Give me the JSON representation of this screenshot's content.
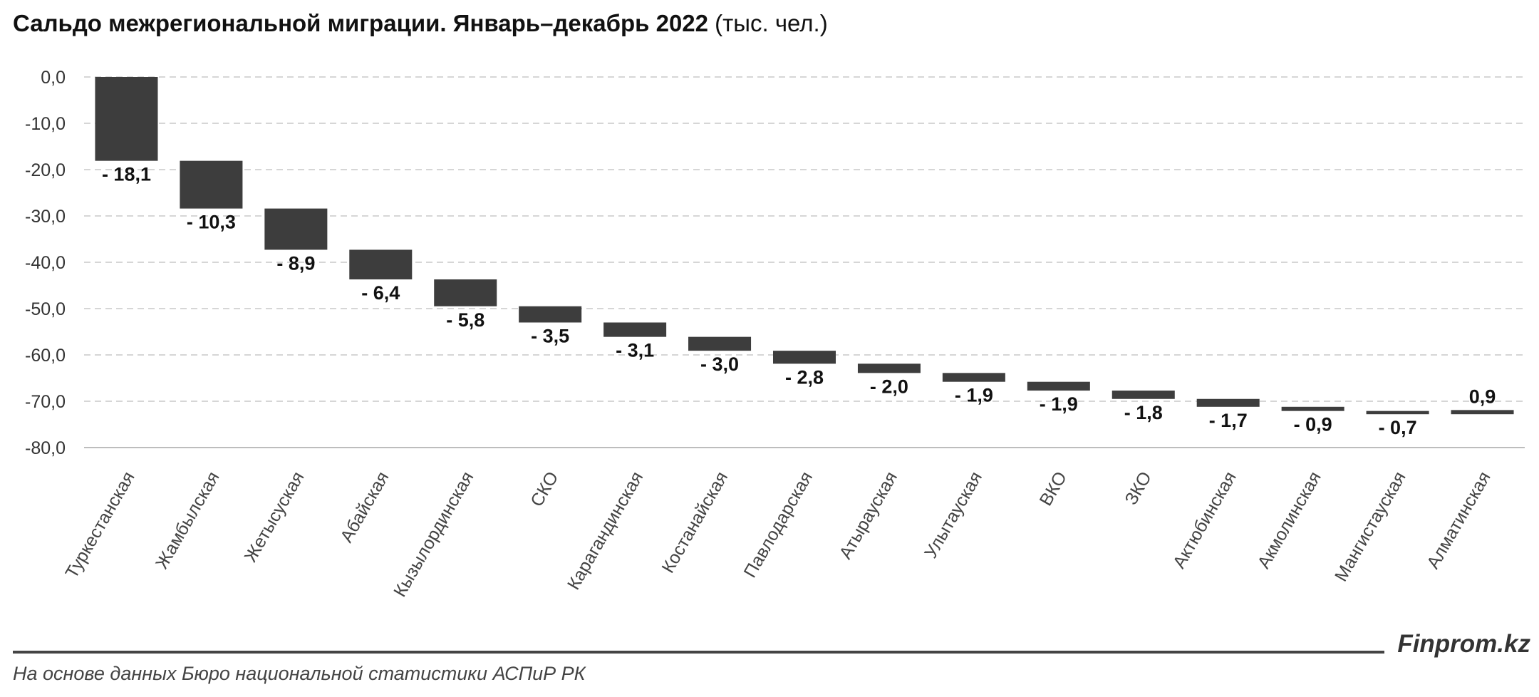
{
  "header": {
    "title_bold": "Сальдо межрегиональной миграции. Январь–декабрь 2022",
    "title_unit": "(тыс. чел.)"
  },
  "footer": {
    "source": "На основе данных Бюро национальной статистики АСПиР РК",
    "brand": "Finprom.kz"
  },
  "colors": {
    "bar": "#3d3d3d",
    "grid": "#c8c8c8"
  },
  "chart_data": {
    "type": "bar",
    "subtype": "waterfall",
    "title": "Сальдо межрегиональной миграции. Январь–декабрь 2022 (тыс. чел.)",
    "categories": [
      "Туркестанская",
      "Жамбылская",
      "Жетысуская",
      "Абайская",
      "Кызылординская",
      "СКО",
      "Карагандинская",
      "Костанайская",
      "Павлодарская",
      "Атырауская",
      "Улытауская",
      "ВКО",
      "ЗКО",
      "Актюбинская",
      "Акмолинская",
      "Мангистауская",
      "Алматинская"
    ],
    "values": [
      -18.1,
      -10.3,
      -8.9,
      -6.4,
      -5.8,
      -3.5,
      -3.1,
      -3.0,
      -2.8,
      -2.0,
      -1.9,
      -1.9,
      -1.8,
      -1.7,
      -0.9,
      -0.7,
      0.9
    ],
    "value_labels": [
      "- 18,1",
      "- 10,3",
      "- 8,9",
      "- 6,4",
      "- 5,8",
      "- 3,5",
      "- 3,1",
      "- 3,0",
      "- 2,8",
      "- 2,0",
      "- 1,9",
      "- 1,9",
      "- 1,8",
      "- 1,7",
      "- 0,9",
      "- 0,7",
      "0,9"
    ],
    "y_ticks": [
      "0,0",
      "-10,0",
      "-20,0",
      "-30,0",
      "-40,0",
      "-50,0",
      "-60,0",
      "-70,0",
      "-80,0"
    ],
    "ylim": [
      -80,
      0
    ],
    "grid": true,
    "legend": "none"
  }
}
